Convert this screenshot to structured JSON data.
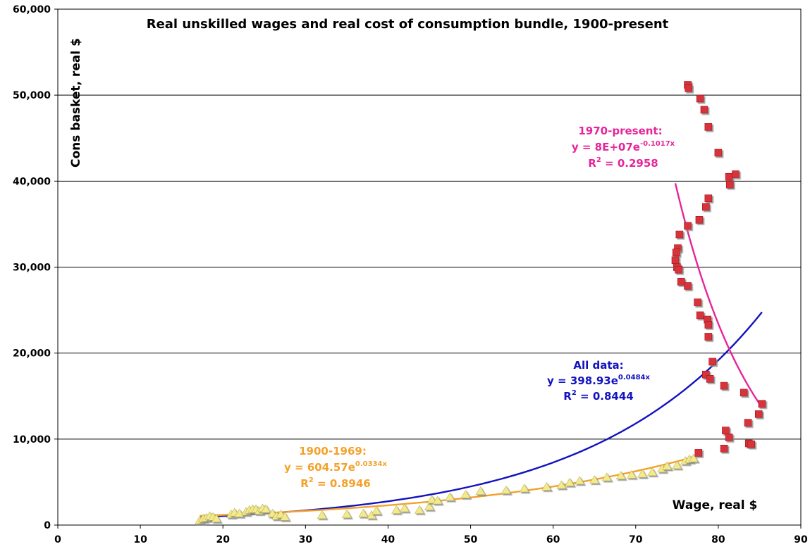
{
  "chart_data": {
    "type": "scatter",
    "title": "Real unskilled wages and real cost of consumption bundle, 1900-present",
    "xlabel": "Wage, real $",
    "ylabel": "Cons basket, real $",
    "xlim": [
      0,
      90
    ],
    "ylim": [
      0,
      60000
    ],
    "x_ticks": [
      0,
      10,
      20,
      30,
      40,
      50,
      60,
      70,
      80,
      90
    ],
    "y_ticks": [
      0,
      10000,
      20000,
      30000,
      40000,
      50000,
      60000
    ],
    "x_tick_labels": [
      "0",
      "10",
      "20",
      "30",
      "40",
      "50",
      "60",
      "70",
      "80",
      "90"
    ],
    "y_tick_labels": [
      "0",
      "10,000",
      "20,000",
      "30,000",
      "40,000",
      "50,000",
      "60,000"
    ],
    "grid": "horizontal",
    "colors": {
      "early_markers": "#f3ea8c",
      "late_markers": "#d8313a",
      "early_trend": "#f4a12a",
      "late_trend": "#e6259a",
      "all_trend": "#1212c0"
    },
    "series": [
      {
        "name": "1900-1969",
        "marker": "triangle",
        "points": [
          [
            17.2,
            600
          ],
          [
            17.6,
            800
          ],
          [
            18.0,
            900
          ],
          [
            18.4,
            1100
          ],
          [
            18.8,
            1000
          ],
          [
            19.2,
            800
          ],
          [
            21.0,
            1300
          ],
          [
            21.4,
            1500
          ],
          [
            22.0,
            1400
          ],
          [
            22.8,
            1600
          ],
          [
            23.2,
            1800
          ],
          [
            23.6,
            1900
          ],
          [
            24.0,
            1900
          ],
          [
            24.4,
            1700
          ],
          [
            24.8,
            2000
          ],
          [
            25.2,
            1900
          ],
          [
            26.0,
            1400
          ],
          [
            26.5,
            1100
          ],
          [
            27.0,
            1300
          ],
          [
            27.5,
            1000
          ],
          [
            32.0,
            1200
          ],
          [
            35.0,
            1300
          ],
          [
            37.0,
            1400
          ],
          [
            38.0,
            1200
          ],
          [
            38.6,
            1700
          ],
          [
            41.0,
            1800
          ],
          [
            42.0,
            2000
          ],
          [
            43.8,
            1800
          ],
          [
            45.0,
            2200
          ],
          [
            45.3,
            3000
          ],
          [
            46.0,
            2900
          ],
          [
            47.5,
            3300
          ],
          [
            49.4,
            3600
          ],
          [
            51.2,
            4000
          ],
          [
            54.3,
            4100
          ],
          [
            56.5,
            4300
          ],
          [
            59.2,
            4500
          ],
          [
            61.0,
            4700
          ],
          [
            62.0,
            5000
          ],
          [
            63.2,
            5200
          ],
          [
            65.0,
            5300
          ],
          [
            66.5,
            5600
          ],
          [
            68.2,
            5800
          ],
          [
            69.5,
            5900
          ],
          [
            70.8,
            6000
          ],
          [
            72.0,
            6200
          ],
          [
            73.2,
            6600
          ],
          [
            73.8,
            6900
          ],
          [
            75.0,
            7000
          ],
          [
            76.0,
            7500
          ],
          [
            76.5,
            7700
          ],
          [
            77.0,
            7800
          ]
        ]
      },
      {
        "name": "1970-present",
        "marker": "square",
        "points": [
          [
            76.3,
            51200
          ],
          [
            76.4,
            50800
          ],
          [
            77.8,
            49600
          ],
          [
            78.3,
            48300
          ],
          [
            78.8,
            46300
          ],
          [
            80.0,
            43300
          ],
          [
            81.3,
            40500
          ],
          [
            81.4,
            39600
          ],
          [
            82.1,
            40800
          ],
          [
            78.8,
            38000
          ],
          [
            78.5,
            37000
          ],
          [
            77.7,
            35500
          ],
          [
            76.3,
            34800
          ],
          [
            75.3,
            33800
          ],
          [
            75.1,
            32200
          ],
          [
            74.9,
            31700
          ],
          [
            74.8,
            30800
          ],
          [
            75.0,
            30000
          ],
          [
            75.2,
            29700
          ],
          [
            75.5,
            28300
          ],
          [
            76.3,
            27800
          ],
          [
            77.5,
            25900
          ],
          [
            77.8,
            24400
          ],
          [
            78.7,
            23900
          ],
          [
            78.8,
            23300
          ],
          [
            78.8,
            21900
          ],
          [
            79.3,
            19000
          ],
          [
            78.5,
            17500
          ],
          [
            79.0,
            17000
          ],
          [
            80.7,
            16200
          ],
          [
            83.1,
            15400
          ],
          [
            85.3,
            14100
          ],
          [
            84.9,
            12900
          ],
          [
            83.6,
            11900
          ],
          [
            80.9,
            11000
          ],
          [
            81.3,
            10200
          ],
          [
            83.7,
            9500
          ],
          [
            84.0,
            9400
          ],
          [
            80.7,
            8900
          ],
          [
            77.6,
            8400
          ]
        ]
      }
    ],
    "trendlines": [
      {
        "name": "All data",
        "equation": "y = 398.93e^(0.0484x)",
        "a": 398.93,
        "b": 0.0484,
        "x_range": [
          17.2,
          85.3
        ]
      },
      {
        "name": "1900-1969",
        "equation": "y = 604.57e^(0.0334x)",
        "a": 604.57,
        "b": 0.0334,
        "x_range": [
          17.2,
          77.0
        ]
      },
      {
        "name": "1970-present",
        "equation": "y = 8E+07e^(-0.1017x)",
        "a": 80000000,
        "b": -0.1017,
        "x_range": [
          74.8,
          85.3
        ]
      }
    ],
    "annotations": {
      "late": {
        "l1": "1970-present:",
        "l2a": "y = 8E+07e",
        "l2sup": "-0.1017x",
        "l3a": "R",
        "l3sup": "2",
        "l3b": " = 0.2958"
      },
      "all": {
        "l1": "All data:",
        "l2a": "y = 398.93e",
        "l2sup": "0.0484x",
        "l3a": "R",
        "l3sup": "2",
        "l3b": " = 0.8444"
      },
      "early": {
        "l1": "1900-1969:",
        "l2a": "y = 604.57e",
        "l2sup": "0.0334x",
        "l3a": "R",
        "l3sup": "2",
        "l3b": " = 0.8946"
      }
    }
  }
}
